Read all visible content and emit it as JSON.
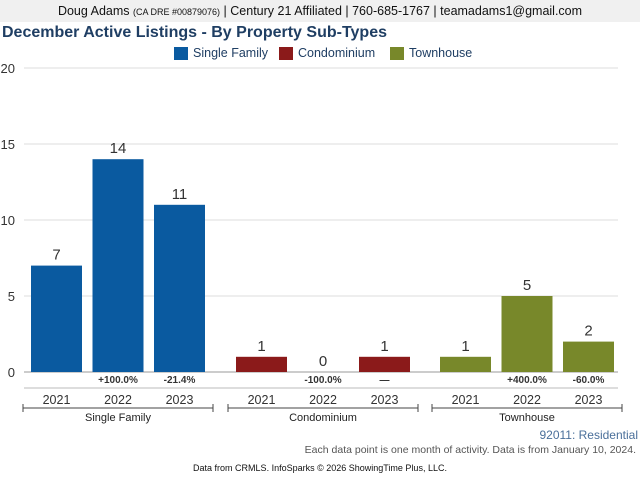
{
  "header": {
    "agent": "Doug Adams",
    "license": "(CA DRE #00879076)",
    "rest": "| Century 21 Affiliated | 760-685-1767 | teamadams1@gmail.com"
  },
  "footer": {
    "geo": "92011: Residential",
    "note": "Each data point is one month of activity. Data is from January 10, 2024.",
    "credit": "Data from CRMLS. InfoSparks © 2026 ShowingTime Plus, LLC."
  },
  "chart_data": {
    "type": "bar",
    "title": "December Active Listings - By Property Sub-Types",
    "xlabel": "",
    "ylabel": "",
    "ylim": [
      0,
      20
    ],
    "yticks": [
      0,
      5,
      10,
      15,
      20
    ],
    "grid": true,
    "legend_position": "top",
    "groups": [
      {
        "name": "Single Family",
        "color": "#0a5aa0",
        "categories": [
          "2021",
          "2022",
          "2023"
        ],
        "values": [
          7,
          14,
          11
        ],
        "changes": [
          "",
          "+100.0%",
          "-21.4%"
        ]
      },
      {
        "name": "Condominium",
        "color": "#8b1a1a",
        "categories": [
          "2021",
          "2022",
          "2023"
        ],
        "values": [
          1,
          0,
          1
        ],
        "changes": [
          "",
          "-100.0%",
          "—"
        ]
      },
      {
        "name": "Townhouse",
        "color": "#78882a",
        "categories": [
          "2021",
          "2022",
          "2023"
        ],
        "values": [
          1,
          5,
          2
        ],
        "changes": [
          "",
          "+400.0%",
          "-60.0%"
        ]
      }
    ]
  }
}
